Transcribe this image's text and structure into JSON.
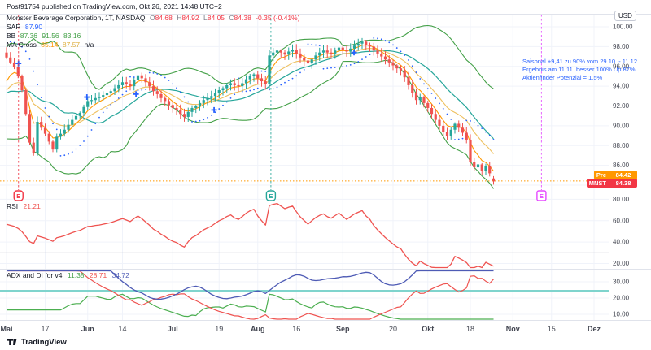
{
  "attribution": "Post91754 published on TradingView.com, Okt 26, 2021 14:48 UTC+2",
  "footer": {
    "brand": "TradingView"
  },
  "legend": {
    "title": "Monster Beverage Corporation, 1T, NASDAQ",
    "ohlc": [
      {
        "k": "O",
        "v": "84.68"
      },
      {
        "k": "H",
        "v": "84.92"
      },
      {
        "k": "L",
        "v": "84.05"
      },
      {
        "k": "C",
        "v": "84.38"
      }
    ],
    "change": "-0.35 (-0.41%)",
    "sar": {
      "label": "SAR",
      "value": "87.90"
    },
    "bb": {
      "label": "BB",
      "values": [
        "87.36",
        "91.56",
        "83.16"
      ]
    },
    "ma": {
      "label": "MA Cross",
      "values": [
        "85.14",
        "87.57"
      ],
      "na": "n/a"
    }
  },
  "rsi_legend": {
    "label": "RSI",
    "value": "21.21"
  },
  "adx_legend": {
    "label": "ADX and DI for v4",
    "values": [
      "11.38",
      "28.71",
      "34.72"
    ]
  },
  "annotation": {
    "lines": [
      "Saisonal +9,41 zu 90% vom 29.10. - 11.12.",
      "Ergebnis am 11.11. besser 100% Up 87%",
      "Aktienfinder Potenzial = 1,5%"
    ]
  },
  "price_tags": {
    "pre": {
      "label": "Pre",
      "value": "84.42"
    },
    "last": {
      "label": "MNST",
      "value": "84.38"
    }
  },
  "axis": {
    "currency": "USD",
    "price_ticks": [
      "100.00",
      "98.00",
      "96.00",
      "94.00",
      "92.00",
      "90.00",
      "88.00",
      "86.00",
      "84.00"
    ],
    "rsi_ticks": [
      "80.00",
      "60.00",
      "40.00",
      "20.00"
    ],
    "adx_ticks": [
      "30.00",
      "20.00",
      "10.00"
    ],
    "time_ticks": [
      {
        "label": "Mai",
        "d": 0,
        "major": true
      },
      {
        "label": "17",
        "d": 10,
        "major": false
      },
      {
        "label": "Jun",
        "d": 21,
        "major": true
      },
      {
        "label": "14",
        "d": 30,
        "major": false
      },
      {
        "label": "Jul",
        "d": 43,
        "major": true
      },
      {
        "label": "19",
        "d": 55,
        "major": false
      },
      {
        "label": "Aug",
        "d": 65,
        "major": true
      },
      {
        "label": "16",
        "d": 75,
        "major": false
      },
      {
        "label": "Sep",
        "d": 87,
        "major": true
      },
      {
        "label": "20",
        "d": 100,
        "major": false
      },
      {
        "label": "Okt",
        "d": 109,
        "major": true
      },
      {
        "label": "18",
        "d": 120,
        "major": false
      },
      {
        "label": "Nov",
        "d": 131,
        "major": true
      },
      {
        "label": "15",
        "d": 141,
        "major": false
      },
      {
        "label": "Dez",
        "d": 152,
        "major": true
      }
    ]
  },
  "events": [
    {
      "label": "E",
      "d": 3.1,
      "color": "#f23645",
      "shape": "shield"
    },
    {
      "label": "E",
      "d": 68.4,
      "color": "#26a69a",
      "shape": "shield"
    },
    {
      "label": "E",
      "d": 138.4,
      "color": "#e549ff",
      "shape": "square"
    }
  ],
  "markers": [
    {
      "d": 3.1,
      "p": 96.3
    },
    {
      "d": 20.8,
      "p": 92.9
    },
    {
      "d": 33.5,
      "p": 93.2
    },
    {
      "d": 53.7,
      "p": 91.6
    },
    {
      "d": 89.9,
      "p": 97.4
    }
  ],
  "colors": {
    "up": "#26a69a",
    "down": "#ef5350",
    "bb_band": "#43a047",
    "bb_basis": "#26a69a",
    "ma_fast": "#ff9800",
    "ma_slow": "#eec05e",
    "sar": "#2962ff",
    "marker": "#2962ff",
    "rsi_line": "#ef5350",
    "rsi_band": "#a7aab4",
    "di_plus": "#4caf50",
    "di_minus": "#ef5350",
    "adx_line": "#4e5bb5",
    "adx_threshold": "#7fd4cd",
    "pre_line": "#ff9800",
    "pre_tag": "#ff9800",
    "last_tag": "#f23645",
    "grid": "#f0f3fa",
    "separator": "#e0e3eb",
    "text": "#131722",
    "axis_text": "#434651",
    "annotation": "#2962ff"
  },
  "chart_data": {
    "type": "candlestick",
    "symbol": "MNST",
    "timeframe": "1T",
    "xlabel_months": [
      "Mai",
      "Jun",
      "Jul",
      "Aug",
      "Sep",
      "Okt",
      "Nov",
      "Dez"
    ],
    "price_range_visible": [
      82.4,
      101.2
    ],
    "pre_price": 84.42,
    "last_price": 84.38,
    "last_ohlc": [
      84.68,
      84.92,
      84.05,
      84.38
    ],
    "closes": [
      96.9,
      96.4,
      95.9,
      95.0,
      93.6,
      91.2,
      88.3,
      87.2,
      90.4,
      89.8,
      89.2,
      88.4,
      87.6,
      88.9,
      89.2,
      89.6,
      90.1,
      90.6,
      91.0,
      91.3,
      91.9,
      92.5,
      92.6,
      92.8,
      92.9,
      93.1,
      93.3,
      93.5,
      93.8,
      94.1,
      94.4,
      94.2,
      94.0,
      94.6,
      95.1,
      94.8,
      94.4,
      94.0,
      93.5,
      93.2,
      92.8,
      92.5,
      92.1,
      91.8,
      91.6,
      91.2,
      90.9,
      91.4,
      91.8,
      92.0,
      92.3,
      92.6,
      92.8,
      93.0,
      93.3,
      93.6,
      93.8,
      94.1,
      94.3,
      94.1,
      94.0,
      94.3,
      94.7,
      95.0,
      95.2,
      94.8,
      94.5,
      94.2,
      97.1,
      97.4,
      97.6,
      97.4,
      97.2,
      97.5,
      97.7,
      97.3,
      96.9,
      96.6,
      96.3,
      96.7,
      97.1,
      97.4,
      97.6,
      97.4,
      97.3,
      97.6,
      97.9,
      97.7,
      97.5,
      97.8,
      98.1,
      98.3,
      98.5,
      98.2,
      98.0,
      97.6,
      97.3,
      97.0,
      96.7,
      96.4,
      96.1,
      95.8,
      95.6,
      94.9,
      94.1,
      93.3,
      92.6,
      92.9,
      92.3,
      91.8,
      91.2,
      90.6,
      90.0,
      89.4,
      89.0,
      89.6,
      90.2,
      89.8,
      89.3,
      88.6,
      86.3,
      85.8,
      86.1,
      85.4,
      85.9,
      85.2,
      84.38
    ],
    "indicators": {
      "bollinger": {
        "period": 20,
        "mult": 2,
        "values_now": [
          87.36,
          91.56,
          83.16
        ]
      },
      "sar": {
        "af": 0.02,
        "af_step": 0.02,
        "af_max": 0.2,
        "value_now": 87.9
      },
      "ma_cross": {
        "fast": 5,
        "slow": 13,
        "values_now": [
          85.14,
          87.57
        ]
      },
      "rsi": {
        "period": 14,
        "value_now": 21.21,
        "bands": [
          70,
          30
        ],
        "scale_ticks": [
          80,
          60,
          40,
          20
        ]
      },
      "adx": {
        "period": 14,
        "threshold": 24.5,
        "values_now": [
          11.38,
          28.71,
          34.72
        ],
        "scale_ticks": [
          30,
          20,
          10
        ]
      }
    }
  }
}
